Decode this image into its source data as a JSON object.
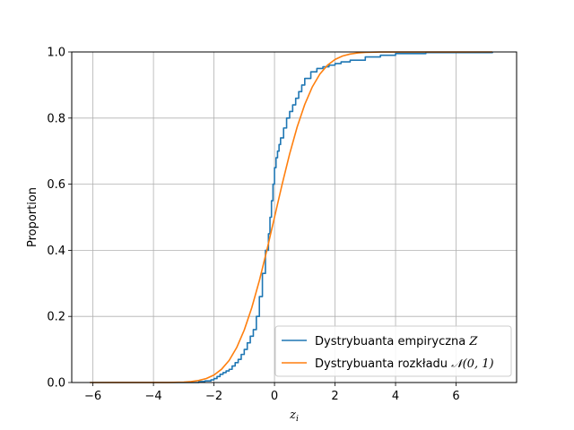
{
  "chart_data": {
    "type": "line",
    "xlabel": "z",
    "xlabel_sub": "i",
    "ylabel": "Proportion",
    "xlim": [
      -6.7,
      8.0
    ],
    "ylim": [
      0.0,
      1.0
    ],
    "xticks": [
      -6,
      -4,
      -2,
      0,
      2,
      4,
      6
    ],
    "xtick_labels": [
      "−6",
      "−4",
      "−2",
      "0",
      "2",
      "4",
      "6"
    ],
    "yticks": [
      0.0,
      0.2,
      0.4,
      0.6,
      0.8,
      1.0
    ],
    "ytick_labels": [
      "0.0",
      "0.2",
      "0.4",
      "0.6",
      "0.8",
      "1.0"
    ],
    "grid": true,
    "legend_position": "lower-right",
    "series": [
      {
        "name": "Dystrybuanta empiryczna Z",
        "legend_text": "Dystrybuanta empiryczna ",
        "legend_symbol": "Z",
        "color": "#1f77b4",
        "step": true,
        "x": [
          -6.1,
          -2.5,
          -2.3,
          -2.1,
          -2.0,
          -1.9,
          -1.8,
          -1.7,
          -1.6,
          -1.5,
          -1.4,
          -1.3,
          -1.2,
          -1.1,
          -1.0,
          -0.9,
          -0.8,
          -0.7,
          -0.6,
          -0.5,
          -0.4,
          -0.3,
          -0.2,
          -0.15,
          -0.1,
          -0.05,
          0.0,
          0.05,
          0.1,
          0.15,
          0.2,
          0.3,
          0.4,
          0.5,
          0.6,
          0.7,
          0.8,
          0.9,
          1.0,
          1.2,
          1.4,
          1.6,
          1.8,
          2.0,
          2.2,
          2.5,
          3.0,
          3.5,
          4.0,
          5.0,
          7.2
        ],
        "y": [
          0.0,
          0.003,
          0.005,
          0.008,
          0.012,
          0.018,
          0.025,
          0.03,
          0.035,
          0.04,
          0.05,
          0.06,
          0.07,
          0.085,
          0.1,
          0.12,
          0.14,
          0.16,
          0.2,
          0.26,
          0.33,
          0.4,
          0.45,
          0.5,
          0.55,
          0.6,
          0.65,
          0.68,
          0.7,
          0.72,
          0.74,
          0.77,
          0.8,
          0.82,
          0.84,
          0.86,
          0.88,
          0.9,
          0.92,
          0.94,
          0.95,
          0.955,
          0.96,
          0.965,
          0.97,
          0.975,
          0.985,
          0.99,
          0.995,
          0.998,
          1.0
        ]
      },
      {
        "name": "Dystrybuanta rozkładu N(0, 1)",
        "legend_text": "Dystrybuanta rozkładu ",
        "legend_symbol": "𝒩(0, 1)",
        "color": "#ff7f0e",
        "step": false,
        "x": [
          -6.1,
          -3.5,
          -3.0,
          -2.75,
          -2.5,
          -2.25,
          -2.0,
          -1.75,
          -1.5,
          -1.25,
          -1.0,
          -0.75,
          -0.5,
          -0.25,
          0.0,
          0.25,
          0.5,
          0.75,
          1.0,
          1.25,
          1.5,
          1.75,
          2.0,
          2.25,
          2.5,
          2.75,
          3.0,
          3.5,
          7.2
        ],
        "y": [
          0.0,
          0.0002,
          0.0013,
          0.003,
          0.0062,
          0.0122,
          0.0228,
          0.0401,
          0.0668,
          0.1056,
          0.1587,
          0.2266,
          0.3085,
          0.4013,
          0.5,
          0.5987,
          0.6915,
          0.7734,
          0.8413,
          0.8944,
          0.9332,
          0.9599,
          0.9772,
          0.9878,
          0.9938,
          0.997,
          0.9987,
          0.9998,
          1.0
        ]
      }
    ]
  }
}
